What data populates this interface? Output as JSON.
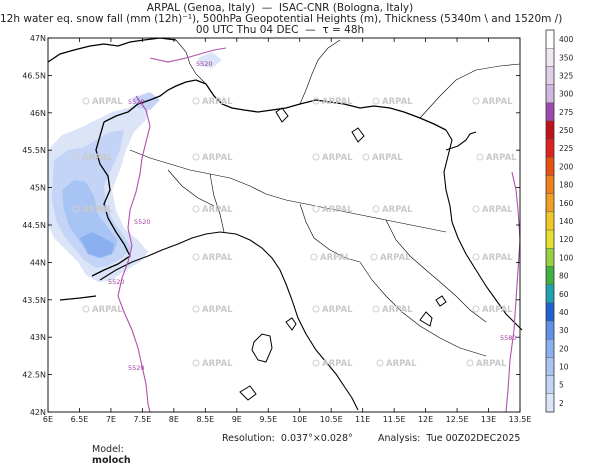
{
  "header": {
    "line1": "ARPAL (Genoa, Italy)  —  ISAC-CNR (Bologna, Italy)",
    "line2": "12h water eq. snow fall (mm (12h)⁻¹), 500hPa Geopotential Heights (m), Thickness (5340m \\ and 1520m /)",
    "line3": "00 UTC Thu 04 DEC  —  τ = 48h"
  },
  "axes": {
    "x_ticks": [
      "6E",
      "6.5E",
      "7E",
      "7.5E",
      "8E",
      "8.5E",
      "9E",
      "9.5E",
      "10E",
      "10.5E",
      "11E",
      "11.5E",
      "12E",
      "12.5E",
      "13E",
      "13.5E"
    ],
    "y_ticks": [
      "47N",
      "46.5N",
      "46N",
      "45.5N",
      "45N",
      "44.5N",
      "44N",
      "43.5N",
      "43N",
      "42.5N",
      "42N"
    ]
  },
  "isolines": {
    "labels": [
      "5520",
      "5520",
      "5520",
      "5520",
      "5520",
      "5580"
    ]
  },
  "watermark": "ARPAL",
  "colorbar": {
    "levels": [
      "400",
      "350",
      "325",
      "300",
      "275",
      "250",
      "225",
      "200",
      "180",
      "160",
      "140",
      "120",
      "100",
      "80",
      "60",
      "40",
      "30",
      "20",
      "10",
      "5",
      "2"
    ],
    "colors": [
      "#ffffff",
      "#f0e8f0",
      "#e0d0e8",
      "#d0b8e0",
      "#9a4ab0",
      "#c01018",
      "#e02020",
      "#e85010",
      "#f08018",
      "#f0a020",
      "#f0c828",
      "#e8e030",
      "#98d040",
      "#40b040",
      "#20a0b0",
      "#2060d0",
      "#6090e8",
      "#8ab0f0",
      "#a8c4f4",
      "#c4d4f6",
      "#dce4f8"
    ]
  },
  "footer": {
    "model_label": "Model:",
    "model_value": "moloch",
    "resolution": "Resolution:  0.037°×0.028°",
    "analysis": "Analysis:  Tue 00Z02DEC2025"
  }
}
